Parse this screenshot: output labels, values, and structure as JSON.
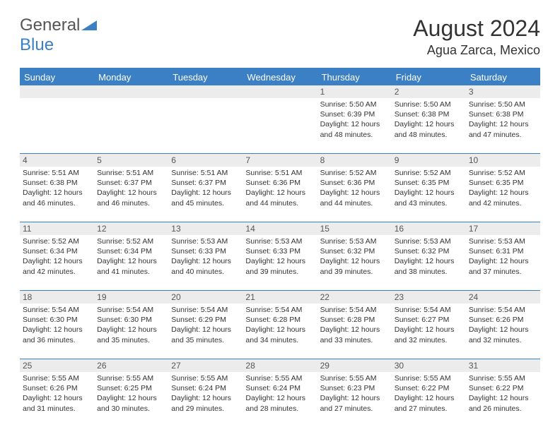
{
  "brand": {
    "part1": "General",
    "part2": "Blue"
  },
  "title": "August 2024",
  "location": "Agua Zarca, Mexico",
  "colors": {
    "header_bg": "#3b7fc4",
    "daynum_bg": "#ececec",
    "text": "#333333",
    "border": "#3b7fc4"
  },
  "fonts": {
    "title_size": 32,
    "location_size": 18,
    "dayheader_size": 13,
    "daynum_size": 12,
    "body_size": 10.5
  },
  "day_names": [
    "Sunday",
    "Monday",
    "Tuesday",
    "Wednesday",
    "Thursday",
    "Friday",
    "Saturday"
  ],
  "weeks": [
    [
      {
        "n": "",
        "sr": "",
        "ss": "",
        "dl": ""
      },
      {
        "n": "",
        "sr": "",
        "ss": "",
        "dl": ""
      },
      {
        "n": "",
        "sr": "",
        "ss": "",
        "dl": ""
      },
      {
        "n": "",
        "sr": "",
        "ss": "",
        "dl": ""
      },
      {
        "n": "1",
        "sr": "Sunrise: 5:50 AM",
        "ss": "Sunset: 6:39 PM",
        "dl": "Daylight: 12 hours and 48 minutes."
      },
      {
        "n": "2",
        "sr": "Sunrise: 5:50 AM",
        "ss": "Sunset: 6:38 PM",
        "dl": "Daylight: 12 hours and 48 minutes."
      },
      {
        "n": "3",
        "sr": "Sunrise: 5:50 AM",
        "ss": "Sunset: 6:38 PM",
        "dl": "Daylight: 12 hours and 47 minutes."
      }
    ],
    [
      {
        "n": "4",
        "sr": "Sunrise: 5:51 AM",
        "ss": "Sunset: 6:38 PM",
        "dl": "Daylight: 12 hours and 46 minutes."
      },
      {
        "n": "5",
        "sr": "Sunrise: 5:51 AM",
        "ss": "Sunset: 6:37 PM",
        "dl": "Daylight: 12 hours and 46 minutes."
      },
      {
        "n": "6",
        "sr": "Sunrise: 5:51 AM",
        "ss": "Sunset: 6:37 PM",
        "dl": "Daylight: 12 hours and 45 minutes."
      },
      {
        "n": "7",
        "sr": "Sunrise: 5:51 AM",
        "ss": "Sunset: 6:36 PM",
        "dl": "Daylight: 12 hours and 44 minutes."
      },
      {
        "n": "8",
        "sr": "Sunrise: 5:52 AM",
        "ss": "Sunset: 6:36 PM",
        "dl": "Daylight: 12 hours and 44 minutes."
      },
      {
        "n": "9",
        "sr": "Sunrise: 5:52 AM",
        "ss": "Sunset: 6:35 PM",
        "dl": "Daylight: 12 hours and 43 minutes."
      },
      {
        "n": "10",
        "sr": "Sunrise: 5:52 AM",
        "ss": "Sunset: 6:35 PM",
        "dl": "Daylight: 12 hours and 42 minutes."
      }
    ],
    [
      {
        "n": "11",
        "sr": "Sunrise: 5:52 AM",
        "ss": "Sunset: 6:34 PM",
        "dl": "Daylight: 12 hours and 42 minutes."
      },
      {
        "n": "12",
        "sr": "Sunrise: 5:52 AM",
        "ss": "Sunset: 6:34 PM",
        "dl": "Daylight: 12 hours and 41 minutes."
      },
      {
        "n": "13",
        "sr": "Sunrise: 5:53 AM",
        "ss": "Sunset: 6:33 PM",
        "dl": "Daylight: 12 hours and 40 minutes."
      },
      {
        "n": "14",
        "sr": "Sunrise: 5:53 AM",
        "ss": "Sunset: 6:33 PM",
        "dl": "Daylight: 12 hours and 39 minutes."
      },
      {
        "n": "15",
        "sr": "Sunrise: 5:53 AM",
        "ss": "Sunset: 6:32 PM",
        "dl": "Daylight: 12 hours and 39 minutes."
      },
      {
        "n": "16",
        "sr": "Sunrise: 5:53 AM",
        "ss": "Sunset: 6:32 PM",
        "dl": "Daylight: 12 hours and 38 minutes."
      },
      {
        "n": "17",
        "sr": "Sunrise: 5:53 AM",
        "ss": "Sunset: 6:31 PM",
        "dl": "Daylight: 12 hours and 37 minutes."
      }
    ],
    [
      {
        "n": "18",
        "sr": "Sunrise: 5:54 AM",
        "ss": "Sunset: 6:30 PM",
        "dl": "Daylight: 12 hours and 36 minutes."
      },
      {
        "n": "19",
        "sr": "Sunrise: 5:54 AM",
        "ss": "Sunset: 6:30 PM",
        "dl": "Daylight: 12 hours and 35 minutes."
      },
      {
        "n": "20",
        "sr": "Sunrise: 5:54 AM",
        "ss": "Sunset: 6:29 PM",
        "dl": "Daylight: 12 hours and 35 minutes."
      },
      {
        "n": "21",
        "sr": "Sunrise: 5:54 AM",
        "ss": "Sunset: 6:28 PM",
        "dl": "Daylight: 12 hours and 34 minutes."
      },
      {
        "n": "22",
        "sr": "Sunrise: 5:54 AM",
        "ss": "Sunset: 6:28 PM",
        "dl": "Daylight: 12 hours and 33 minutes."
      },
      {
        "n": "23",
        "sr": "Sunrise: 5:54 AM",
        "ss": "Sunset: 6:27 PM",
        "dl": "Daylight: 12 hours and 32 minutes."
      },
      {
        "n": "24",
        "sr": "Sunrise: 5:54 AM",
        "ss": "Sunset: 6:26 PM",
        "dl": "Daylight: 12 hours and 32 minutes."
      }
    ],
    [
      {
        "n": "25",
        "sr": "Sunrise: 5:55 AM",
        "ss": "Sunset: 6:26 PM",
        "dl": "Daylight: 12 hours and 31 minutes."
      },
      {
        "n": "26",
        "sr": "Sunrise: 5:55 AM",
        "ss": "Sunset: 6:25 PM",
        "dl": "Daylight: 12 hours and 30 minutes."
      },
      {
        "n": "27",
        "sr": "Sunrise: 5:55 AM",
        "ss": "Sunset: 6:24 PM",
        "dl": "Daylight: 12 hours and 29 minutes."
      },
      {
        "n": "28",
        "sr": "Sunrise: 5:55 AM",
        "ss": "Sunset: 6:24 PM",
        "dl": "Daylight: 12 hours and 28 minutes."
      },
      {
        "n": "29",
        "sr": "Sunrise: 5:55 AM",
        "ss": "Sunset: 6:23 PM",
        "dl": "Daylight: 12 hours and 27 minutes."
      },
      {
        "n": "30",
        "sr": "Sunrise: 5:55 AM",
        "ss": "Sunset: 6:22 PM",
        "dl": "Daylight: 12 hours and 27 minutes."
      },
      {
        "n": "31",
        "sr": "Sunrise: 5:55 AM",
        "ss": "Sunset: 6:22 PM",
        "dl": "Daylight: 12 hours and 26 minutes."
      }
    ]
  ]
}
